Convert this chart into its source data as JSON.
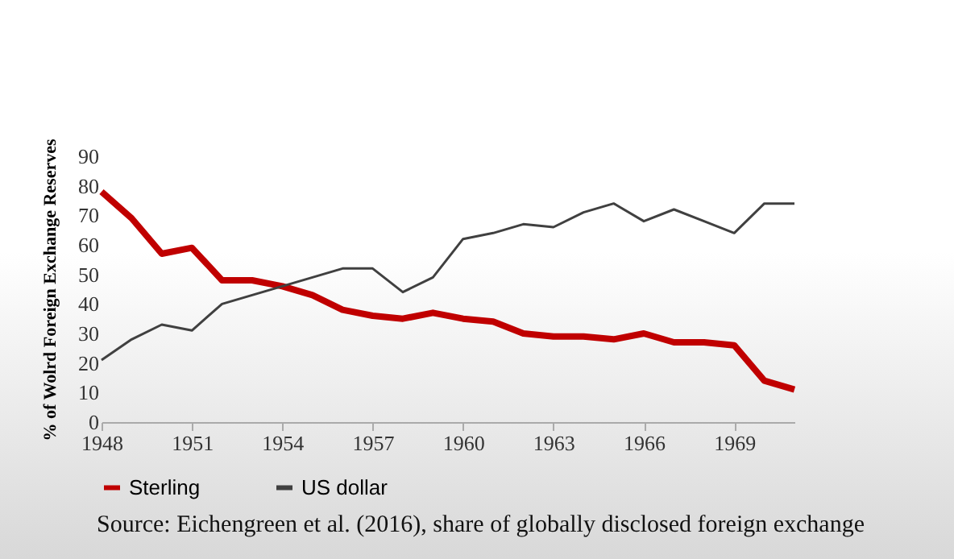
{
  "chart_data": {
    "type": "line",
    "ylabel": "% of Wolrd Foreign Exchange Reserves",
    "x": [
      1948,
      1949,
      1950,
      1951,
      1952,
      1953,
      1954,
      1955,
      1956,
      1957,
      1958,
      1959,
      1960,
      1961,
      1962,
      1963,
      1964,
      1965,
      1966,
      1967,
      1968,
      1969,
      1970,
      1971
    ],
    "series": [
      {
        "name": "Sterling",
        "color": "#c00000",
        "values": [
          78,
          69,
          57,
          59,
          48,
          48,
          46,
          43,
          38,
          36,
          35,
          37,
          35,
          34,
          30,
          29,
          29,
          28,
          30,
          27,
          27,
          26,
          14,
          11
        ]
      },
      {
        "name": "US dollar",
        "color": "#404040",
        "values": [
          21,
          28,
          33,
          31,
          40,
          43,
          46,
          49,
          52,
          52,
          44,
          49,
          62,
          64,
          67,
          66,
          71,
          74,
          68,
          72,
          68,
          64,
          74,
          74
        ]
      }
    ],
    "xlim": [
      1948,
      1971
    ],
    "xticks": [
      1948,
      1951,
      1954,
      1957,
      1960,
      1963,
      1966,
      1969
    ],
    "ylim": [
      0,
      90
    ],
    "yticks": [
      0,
      10,
      20,
      30,
      40,
      50,
      60,
      70,
      80,
      90
    ],
    "grid": false,
    "legend": "bottom",
    "marker": "none",
    "line_style": "solid",
    "annotations": [
      "Source: Eichengreen et al. (2016), share of globally disclosed foreign exchange"
    ]
  }
}
